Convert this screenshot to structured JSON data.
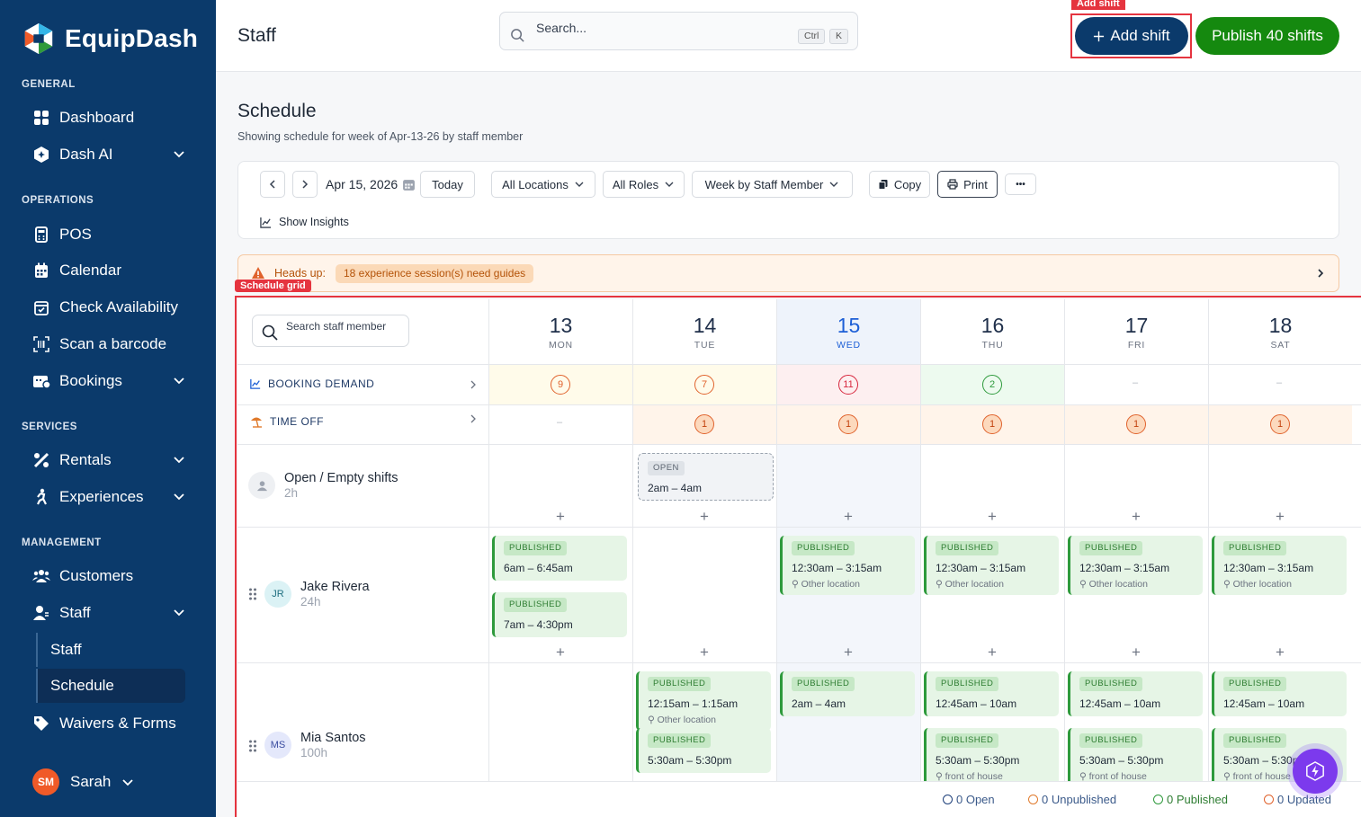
{
  "brand": {
    "name": "EquipDash",
    "colors": {
      "sidebar": "#0b3a6b",
      "accent": "#15890f",
      "primary": "#0b3a6b",
      "highlight": "#e5343f"
    }
  },
  "sidebar": {
    "sections": [
      {
        "label": "GENERAL",
        "items": [
          {
            "label": "Dashboard",
            "icon": "grid-icon"
          },
          {
            "label": "Dash AI",
            "icon": "ai-icon",
            "expandable": true
          }
        ]
      },
      {
        "label": "OPERATIONS",
        "items": [
          {
            "label": "POS",
            "icon": "pos-icon"
          },
          {
            "label": "Calendar",
            "icon": "calendar-icon"
          },
          {
            "label": "Check Availability",
            "icon": "calendar-check-icon"
          },
          {
            "label": "Scan a barcode",
            "icon": "barcode-icon"
          },
          {
            "label": "Bookings",
            "icon": "bookings-icon",
            "expandable": true
          }
        ]
      },
      {
        "label": "SERVICES",
        "items": [
          {
            "label": "Rentals",
            "icon": "rentals-icon",
            "expandable": true
          },
          {
            "label": "Experiences",
            "icon": "experiences-icon",
            "expandable": true
          }
        ]
      },
      {
        "label": "MANAGEMENT",
        "items": [
          {
            "label": "Customers",
            "icon": "customers-icon"
          },
          {
            "label": "Staff",
            "icon": "staff-icon",
            "expandable": true
          },
          {
            "label": "Waivers & Forms",
            "icon": "waiver-icon"
          }
        ]
      }
    ],
    "staff_sub": [
      {
        "label": "Staff"
      },
      {
        "label": "Schedule",
        "active": true
      }
    ],
    "user": {
      "initials": "SM",
      "name": "Sarah"
    }
  },
  "header": {
    "title": "Staff",
    "search": {
      "placeholder": "Search...",
      "kbd": [
        "Ctrl",
        "K"
      ]
    },
    "add_shift": "Add shift",
    "add_shift_tag": "Add shift",
    "publish": "Publish 40 shifts"
  },
  "schedule": {
    "title": "Schedule",
    "subtitle": "Showing schedule for week of Apr-13-26 by staff member",
    "toolbar": {
      "date": "Apr 15, 2026",
      "today": "Today",
      "locations": "All Locations",
      "roles": "All Roles",
      "view": "Week by Staff Member",
      "copy": "Copy",
      "print": "Print",
      "more": "•••",
      "insights": "Show Insights"
    },
    "alert": {
      "heading": "Heads up:",
      "badge": "18 experience session(s) need guides"
    },
    "grid_tag": "Schedule grid",
    "staff_search_placeholder": "Search staff member",
    "days": [
      {
        "num": "13",
        "wd": "MON"
      },
      {
        "num": "14",
        "wd": "TUE"
      },
      {
        "num": "15",
        "wd": "WED",
        "today": true
      },
      {
        "num": "16",
        "wd": "THU"
      },
      {
        "num": "17",
        "wd": "FRI"
      },
      {
        "num": "18",
        "wd": "SAT"
      }
    ],
    "booking_demand": {
      "label": "BOOKING DEMAND",
      "values": [
        "9",
        "7",
        "11",
        "2",
        "–",
        "–"
      ]
    },
    "time_off": {
      "label": "TIME OFF",
      "values": [
        "–",
        "1",
        "1",
        "1",
        "1",
        "1"
      ]
    },
    "rows": [
      {
        "name": "Open / Empty shifts",
        "hours": "2h",
        "open_shift": {
          "tag": "OPEN",
          "time": "2am – 4am"
        }
      },
      {
        "name": "Jake Rivera",
        "initials": "JR",
        "hours": "24h"
      },
      {
        "name": "Mia Santos",
        "initials": "MS",
        "hours": "100h"
      }
    ],
    "shift_tag": "PUBLISHED",
    "shifts_jake": [
      {
        "day": 0,
        "slot": 0,
        "time": "6am – 6:45am",
        "loc": ""
      },
      {
        "day": 0,
        "slot": 1,
        "time": "7am – 4:30pm",
        "loc": ""
      },
      {
        "day": 2,
        "slot": 0,
        "time": "12:30am – 3:15am",
        "loc": "Other location"
      },
      {
        "day": 3,
        "slot": 0,
        "time": "12:30am – 3:15am",
        "loc": "Other location"
      },
      {
        "day": 4,
        "slot": 0,
        "time": "12:30am – 3:15am",
        "loc": "Other location"
      },
      {
        "day": 5,
        "slot": 0,
        "time": "12:30am – 3:15am",
        "loc": "Other location"
      }
    ],
    "shifts_mia": [
      {
        "day": 1,
        "slot": 0,
        "time": "12:15am – 1:15am",
        "loc": "Other location"
      },
      {
        "day": 1,
        "slot": 1,
        "time": "5:30am – 5:30pm",
        "loc": ""
      },
      {
        "day": 2,
        "slot": 0,
        "time": "2am – 4am",
        "loc": ""
      },
      {
        "day": 3,
        "slot": 0,
        "time": "12:45am – 10am",
        "loc": ""
      },
      {
        "day": 3,
        "slot": 1,
        "time": "5:30am – 5:30pm",
        "loc": "front of house"
      },
      {
        "day": 4,
        "slot": 0,
        "time": "12:45am – 10am",
        "loc": ""
      },
      {
        "day": 4,
        "slot": 1,
        "time": "5:30am – 5:30pm",
        "loc": "front of house"
      },
      {
        "day": 5,
        "slot": 0,
        "time": "12:45am – 10am",
        "loc": ""
      },
      {
        "day": 5,
        "slot": 1,
        "time": "5:30am – 5:30pm",
        "loc": "front of house"
      }
    ],
    "footer": [
      {
        "label": "0 Open",
        "color": "#1d3f7a"
      },
      {
        "label": "0 Unpublished",
        "color": "#e07a2c"
      },
      {
        "label": "0 Published",
        "color": "#2e9a3c"
      },
      {
        "label": "0 Updated",
        "color": "#e0622c"
      }
    ]
  }
}
